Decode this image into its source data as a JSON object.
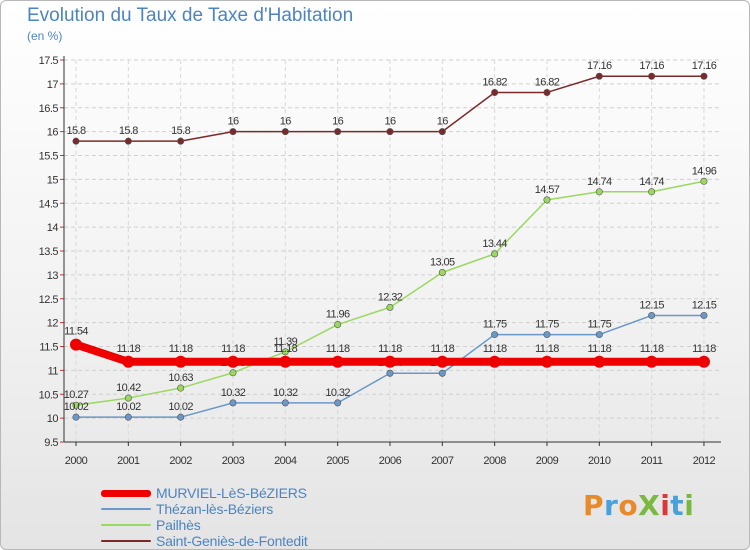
{
  "header": {
    "title": "Evolution du Taux de Taxe d'Habitation",
    "unit": "(en %)"
  },
  "chart_data": {
    "type": "line",
    "x": [
      "2000",
      "2001",
      "2002",
      "2003",
      "2004",
      "2005",
      "2006",
      "2007",
      "2008",
      "2009",
      "2010",
      "2011",
      "2012"
    ],
    "ylim": [
      9.5,
      17.5
    ],
    "yticks": [
      "9.5",
      "10",
      "10.5",
      "11",
      "11.5",
      "12",
      "12.5",
      "13",
      "13.5",
      "14",
      "14.5",
      "15",
      "15.5",
      "16",
      "16.5",
      "17",
      "17.5"
    ],
    "grid": true,
    "legend_position": "bottom-left",
    "series": [
      {
        "name": "MURVIEL-LèS-BéZIERS",
        "color": "#ee0000",
        "values": [
          11.54,
          11.18,
          11.18,
          11.18,
          11.18,
          11.18,
          11.18,
          11.18,
          11.18,
          11.18,
          11.18,
          11.18,
          11.18
        ],
        "labels": [
          "11.54",
          "11.18",
          "11.18",
          "11.18",
          "11.18",
          "11.18",
          "11.18",
          "11.18",
          "11.18",
          "11.18",
          "11.18",
          "11.18",
          "11.18"
        ]
      },
      {
        "name": "Thézan-lès-Béziers",
        "color": "#6a98c8",
        "values": [
          10.02,
          10.02,
          10.02,
          10.32,
          10.32,
          10.32,
          10.94,
          10.94,
          11.75,
          11.75,
          11.75,
          12.15,
          12.15
        ],
        "labels": [
          "10.02",
          "10.02",
          "10.02",
          "10.32",
          "10.32",
          "10.32",
          "10.94",
          "10.94",
          "11.75",
          "11.75",
          "11.75",
          "12.15",
          "12.15"
        ]
      },
      {
        "name": "Pailhès",
        "color": "#9ad860",
        "values": [
          10.27,
          10.42,
          10.63,
          10.95,
          11.39,
          11.96,
          12.32,
          13.05,
          13.44,
          14.57,
          14.74,
          14.74,
          14.96
        ],
        "labels": [
          "10.27",
          "10.42",
          "10.63",
          "10.95",
          "11.39",
          "11.96",
          "12.32",
          "13.05",
          "13.44",
          "14.57",
          "14.74",
          "14.74",
          "14.96"
        ]
      },
      {
        "name": "Saint-Geniès-de-Fontedit",
        "color": "#7a2a2a",
        "values": [
          15.8,
          15.8,
          15.8,
          16,
          16,
          16,
          16,
          16,
          16.82,
          16.82,
          17.16,
          17.16,
          17.16
        ],
        "labels": [
          "15.8",
          "15.8",
          "15.8",
          "16",
          "16",
          "16",
          "16",
          "16",
          "16.82",
          "16.82",
          "17.16",
          "17.16",
          "17.16"
        ]
      }
    ]
  },
  "logo": {
    "text": "ProXiti"
  }
}
